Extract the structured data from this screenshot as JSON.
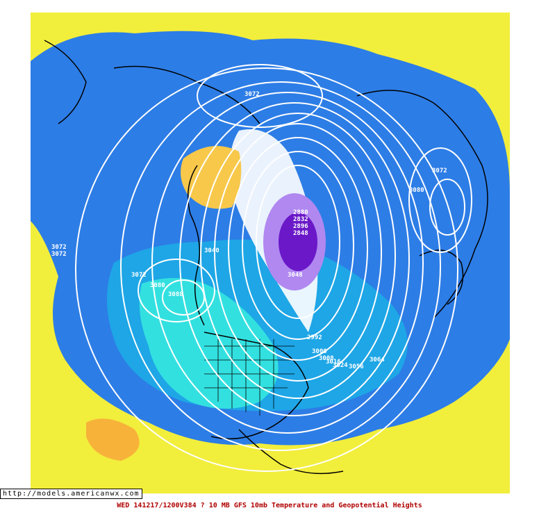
{
  "source_url": "http://models.americanwx.com",
  "caption": "WED 141217/1200V384   ? 10 MB GFS 10mb Temperature and Geopotential Heights",
  "colors": {
    "warm_yellow": "#f2ee3c",
    "orange": "#f7b23a",
    "light_blue": "#1ea6e6",
    "medium_blue": "#2d7de6",
    "cyan": "#33e0e0",
    "purple": "#9040e0",
    "deep_purple": "#6a18c8",
    "contour": "#ffffff",
    "coastline": "#000000",
    "caption_red": "#b00000"
  },
  "contour_labels": [
    "3072",
    "3072",
    "3072",
    "3072",
    "3072",
    "3080",
    "3080",
    "3088",
    "3064",
    "3056",
    "3040",
    "2880",
    "2832",
    "2896",
    "2848",
    "2992",
    "3000",
    "3008",
    "3016",
    "3024",
    "3048"
  ]
}
